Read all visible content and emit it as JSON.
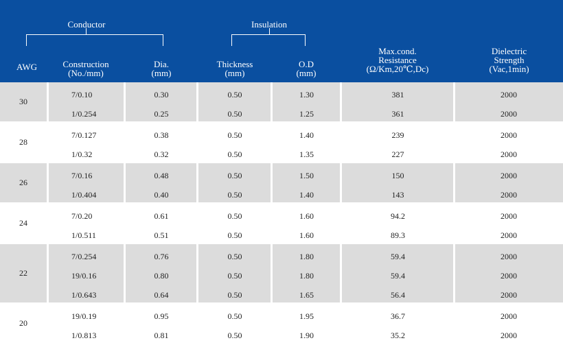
{
  "colors": {
    "header_bg": "#0a4fa0",
    "stripe": "#dcdcdc",
    "plain": "#ffffff",
    "text": "#222222"
  },
  "header": {
    "conductor": "Conductor",
    "insulation": "Insulation",
    "awg": "AWG",
    "construction": [
      "Construction",
      "(No./mm)"
    ],
    "dia": [
      "Dia.",
      "(mm)"
    ],
    "thickness": [
      "Thickness",
      "(mm)"
    ],
    "od": [
      "O.D",
      "(mm)"
    ],
    "resistance": [
      "Max.cond.",
      "Resistance",
      "(Ω/Km,20℃,Dc)"
    ],
    "dielectric": [
      "Dielectric",
      "Strength",
      "(Vac,1min)"
    ]
  },
  "groups": [
    {
      "awg": "30",
      "shaded": true,
      "rows": [
        {
          "construction": "7/0.10",
          "dia": "0.30",
          "thickness": "0.50",
          "od": "1.30",
          "resistance": "381",
          "dielectric": "2000"
        },
        {
          "construction": "1/0.254",
          "dia": "0.25",
          "thickness": "0.50",
          "od": "1.25",
          "resistance": "361",
          "dielectric": "2000"
        }
      ]
    },
    {
      "awg": "28",
      "shaded": false,
      "rows": [
        {
          "construction": "7/0.127",
          "dia": "0.38",
          "thickness": "0.50",
          "od": "1.40",
          "resistance": "239",
          "dielectric": "2000"
        },
        {
          "construction": "1/0.32",
          "dia": "0.32",
          "thickness": "0.50",
          "od": "1.35",
          "resistance": "227",
          "dielectric": "2000"
        }
      ]
    },
    {
      "awg": "26",
      "shaded": true,
      "rows": [
        {
          "construction": "7/0.16",
          "dia": "0.48",
          "thickness": "0.50",
          "od": "1.50",
          "resistance": "150",
          "dielectric": "2000"
        },
        {
          "construction": "1/0.404",
          "dia": "0.40",
          "thickness": "0.50",
          "od": "1.40",
          "resistance": "143",
          "dielectric": "2000"
        }
      ]
    },
    {
      "awg": "24",
      "shaded": false,
      "rows": [
        {
          "construction": "7/0.20",
          "dia": "0.61",
          "thickness": "0.50",
          "od": "1.60",
          "resistance": "94.2",
          "dielectric": "2000"
        },
        {
          "construction": "1/0.511",
          "dia": "0.51",
          "thickness": "0.50",
          "od": "1.60",
          "resistance": "89.3",
          "dielectric": "2000"
        }
      ]
    },
    {
      "awg": "22",
      "shaded": true,
      "rows": [
        {
          "construction": "7/0.254",
          "dia": "0.76",
          "thickness": "0.50",
          "od": "1.80",
          "resistance": "59.4",
          "dielectric": "2000"
        },
        {
          "construction": "19/0.16",
          "dia": "0.80",
          "thickness": "0.50",
          "od": "1.80",
          "resistance": "59.4",
          "dielectric": "2000"
        },
        {
          "construction": "1/0.643",
          "dia": "0.64",
          "thickness": "0.50",
          "od": "1.65",
          "resistance": "56.4",
          "dielectric": "2000"
        }
      ]
    },
    {
      "awg": "20",
      "shaded": false,
      "rows": [
        {
          "construction": "19/0.19",
          "dia": "0.95",
          "thickness": "0.50",
          "od": "1.95",
          "resistance": "36.7",
          "dielectric": "2000"
        },
        {
          "construction": "1/0.813",
          "dia": "0.81",
          "thickness": "0.50",
          "od": "1.90",
          "resistance": "35.2",
          "dielectric": "2000"
        }
      ]
    }
  ]
}
